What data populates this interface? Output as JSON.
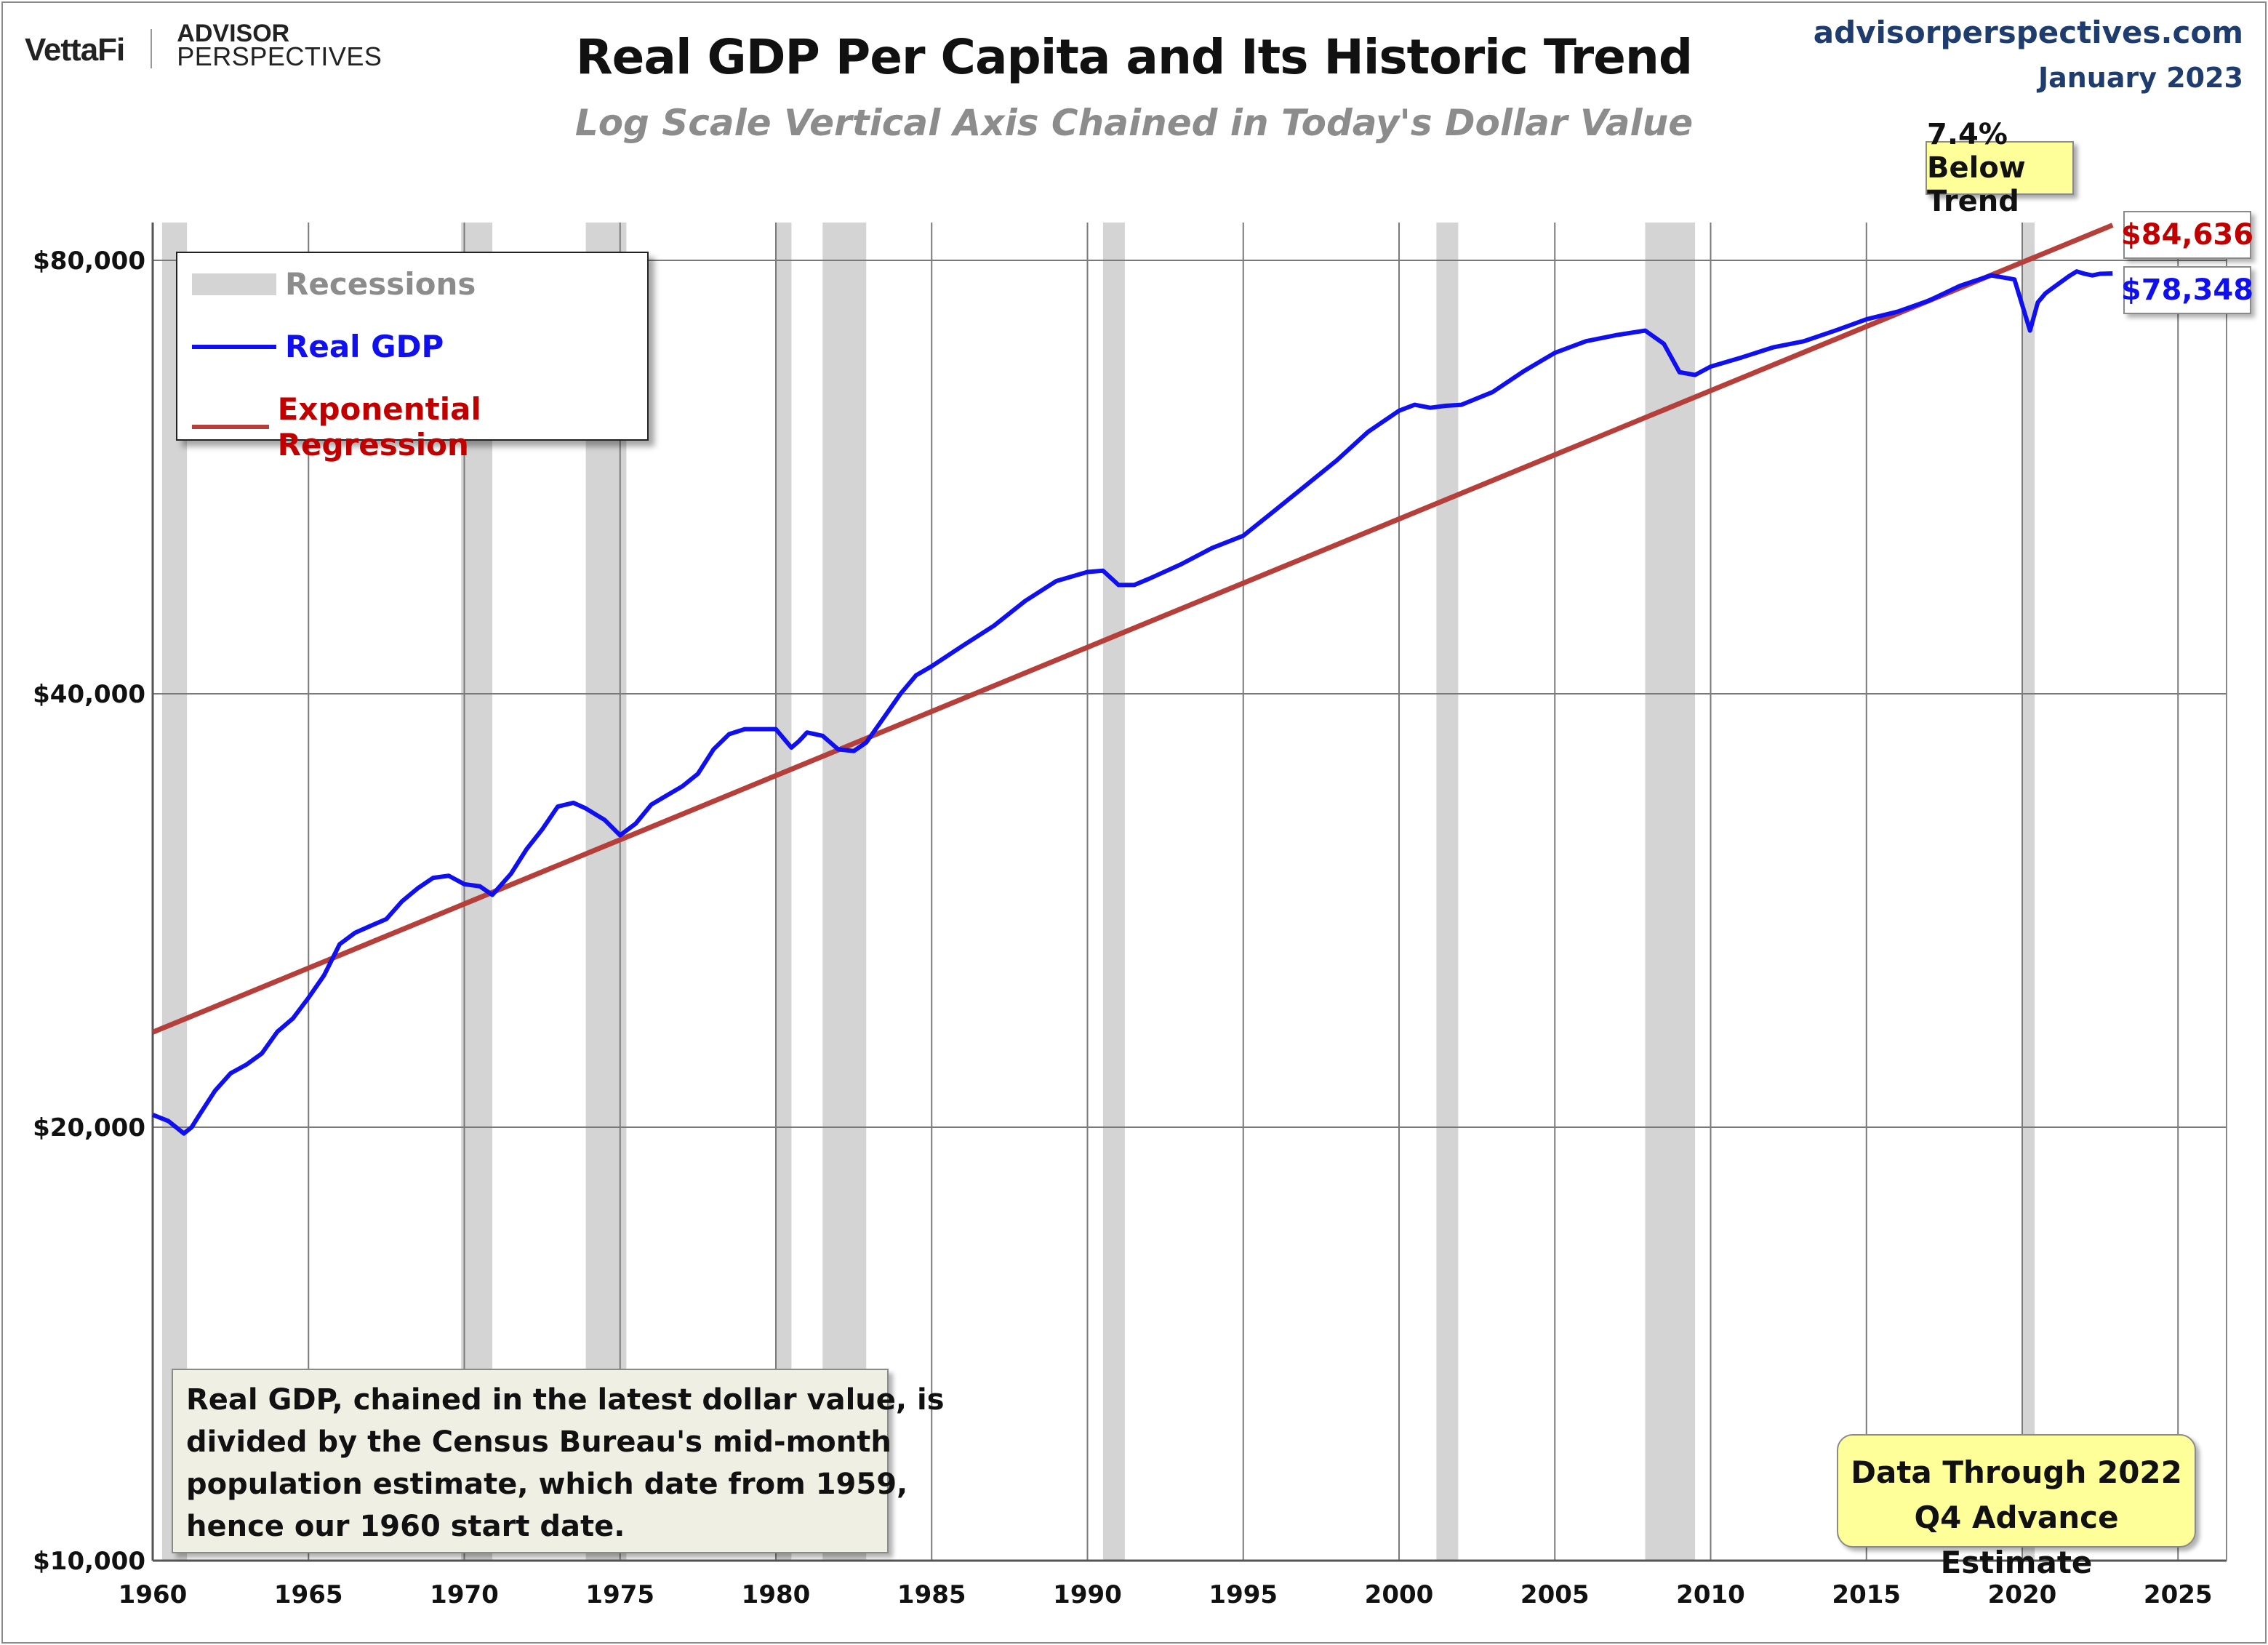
{
  "header": {
    "logo_left": "VettaFi",
    "logo_right_line1": "ADVISOR",
    "logo_right_line2": "PERSPECTIVES",
    "site": "advisorperspectives.com",
    "date": "January 2023"
  },
  "callouts": {
    "below_trend": "7.4% Below Trend",
    "trend_value": "$84,636",
    "gdp_value": "$78,348"
  },
  "note": {
    "lines": [
      "Real GDP, chained in the latest dollar value, is",
      "divided by the Census Bureau's mid-month",
      "population estimate, which date from 1959,",
      "hence our 1960 start date."
    ]
  },
  "data_through": {
    "line1": "Data Through 2022",
    "line2": "Q4 Advance Estimate"
  },
  "colors": {
    "real_gdp": "#1010ee",
    "regression": "#b5403b",
    "recession": "#d4d4d4",
    "gridline": "#7a7a7a"
  },
  "chart_data": {
    "type": "line",
    "title": "Real GDP Per Capita and Its Historic Trend",
    "subtitle": "Log Scale Vertical Axis Chained in Today's Dollar Value",
    "xlabel": "",
    "ylabel": "",
    "x_scale": "linear (year)",
    "y_scale": "log",
    "xlim": [
      1960,
      2026
    ],
    "ylim": [
      10000,
      80000
    ],
    "x_ticks": [
      1960,
      1965,
      1970,
      1975,
      1980,
      1985,
      1990,
      1995,
      2000,
      2005,
      2010,
      2015,
      2020,
      2025
    ],
    "x_tick_labels": [
      "1960",
      "1965",
      "1970",
      "1975",
      "1980",
      "1985",
      "1990",
      "1995",
      "2000",
      "2005",
      "2010",
      "2015",
      "2020",
      "2025"
    ],
    "y_ticks": [
      10000,
      20000,
      40000,
      80000
    ],
    "y_tick_labels": [
      "$10,000",
      "$20,000",
      "$40,000",
      "$80,000"
    ],
    "grid": true,
    "legend_position": "top-left",
    "recessions": {
      "name": "Recessions",
      "periods": [
        [
          1960.3,
          1961.1
        ],
        [
          1969.9,
          1970.9
        ],
        [
          1973.9,
          1975.2
        ],
        [
          1980.0,
          1980.5
        ],
        [
          1981.5,
          1982.9
        ],
        [
          1990.5,
          1991.2
        ],
        [
          2001.2,
          2001.9
        ],
        [
          2007.9,
          2009.5
        ],
        [
          2020.0,
          2020.4
        ]
      ]
    },
    "series": [
      {
        "name": "Real GDP",
        "x": [
          1960.0,
          1960.5,
          1960.75,
          1961.0,
          1961.25,
          1961.5,
          1962.0,
          1962.5,
          1963.0,
          1963.5,
          1964.0,
          1964.5,
          1965.0,
          1965.5,
          1966.0,
          1966.5,
          1967.0,
          1967.5,
          1968.0,
          1968.5,
          1969.0,
          1969.5,
          1970.0,
          1970.5,
          1970.9,
          1971.5,
          1972.0,
          1972.5,
          1973.0,
          1973.5,
          1973.9,
          1974.5,
          1975.0,
          1975.5,
          1976.0,
          1976.5,
          1977.0,
          1977.5,
          1978.0,
          1978.5,
          1979.0,
          1979.5,
          1980.0,
          1980.5,
          1980.75,
          1981.0,
          1981.5,
          1982.0,
          1982.5,
          1982.9,
          1983.5,
          1984.0,
          1984.5,
          1985.0,
          1986.0,
          1987.0,
          1988.0,
          1989.0,
          1990.0,
          1990.5,
          1991.0,
          1991.5,
          1992.0,
          1993.0,
          1994.0,
          1995.0,
          1996.0,
          1997.0,
          1998.0,
          1999.0,
          2000.0,
          2000.5,
          2001.0,
          2001.5,
          2002.0,
          2003.0,
          2004.0,
          2005.0,
          2006.0,
          2007.0,
          2007.9,
          2008.5,
          2009.0,
          2009.5,
          2010.0,
          2011.0,
          2012.0,
          2013.0,
          2014.0,
          2015.0,
          2016.0,
          2017.0,
          2018.0,
          2019.0,
          2019.75,
          2020.25,
          2020.5,
          2020.75,
          2021.0,
          2021.5,
          2021.75,
          2022.0,
          2022.25,
          2022.5,
          2022.9
        ],
        "values": [
          20400,
          20200,
          20000,
          19800,
          20000,
          20400,
          21200,
          21800,
          22100,
          22500,
          23300,
          23800,
          24600,
          25500,
          26800,
          27300,
          27600,
          27900,
          28700,
          29300,
          29800,
          29900,
          29500,
          29400,
          29000,
          30000,
          31200,
          32200,
          33400,
          33600,
          33300,
          32700,
          31900,
          32500,
          33500,
          34000,
          34500,
          35200,
          36600,
          37500,
          37800,
          37800,
          37800,
          36700,
          37100,
          37600,
          37400,
          36600,
          36500,
          37000,
          38600,
          40000,
          41200,
          41800,
          43200,
          44600,
          46400,
          47900,
          48600,
          48700,
          47600,
          47600,
          48100,
          49200,
          50500,
          51500,
          53600,
          55800,
          58100,
          60800,
          62900,
          63500,
          63200,
          63400,
          63500,
          64800,
          67000,
          69000,
          70300,
          71000,
          71500,
          70000,
          66900,
          66600,
          67500,
          68500,
          69600,
          70300,
          71500,
          72800,
          73700,
          75000,
          76800,
          78100,
          77600,
          71500,
          74800,
          75900,
          76600,
          78000,
          78600,
          78300,
          78100,
          78300,
          78348
        ]
      },
      {
        "name": "Exponential Regression",
        "x": [
          1960.0,
          2022.9
        ],
        "values": [
          23280,
          84636
        ]
      }
    ],
    "annotations": [
      "7.4% Below Trend",
      "$84,636",
      "$78,348"
    ]
  }
}
